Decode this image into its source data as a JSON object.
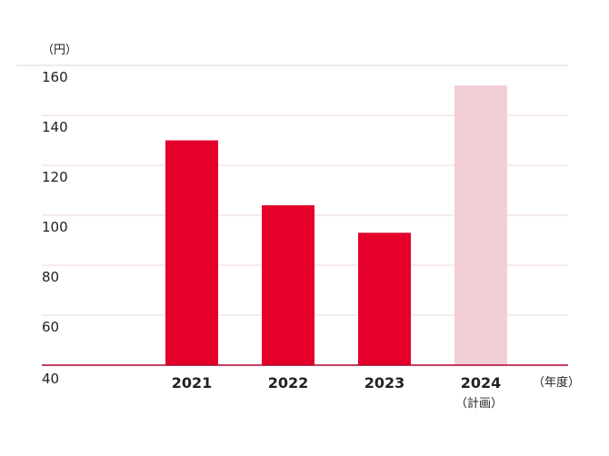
{
  "chart_data": {
    "type": "bar",
    "y_unit_label": "（円）",
    "x_unit_label": "（年度）",
    "ylim": [
      40,
      160
    ],
    "yticks": [
      40,
      60,
      80,
      100,
      120,
      140,
      160
    ],
    "grid": true,
    "categories": [
      "2021",
      "2022",
      "2023",
      "2024"
    ],
    "category_sublabels": [
      "",
      "",
      "",
      "（計画）"
    ],
    "values": [
      130,
      104,
      93,
      152
    ],
    "colors": [
      "#e4002b",
      "#e4002b",
      "#e4002b",
      "#f2cfd6"
    ],
    "planned": [
      false,
      false,
      false,
      true
    ]
  }
}
